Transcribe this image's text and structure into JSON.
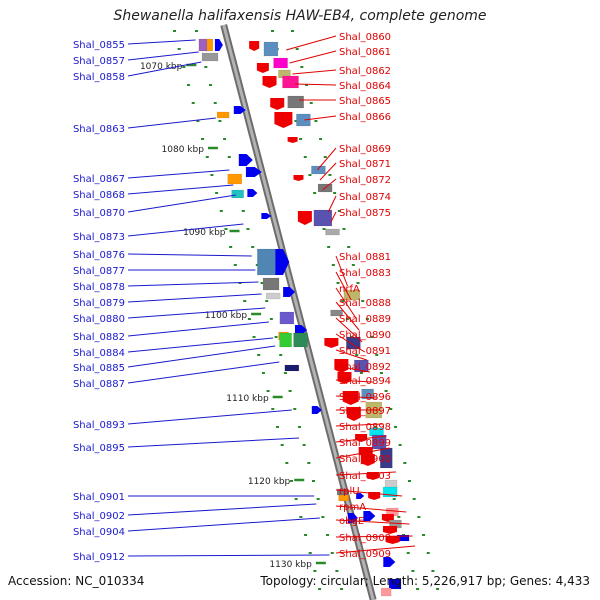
{
  "title": "Shewanella halifaxensis HAW-EB4, complete genome",
  "accession_text": "Accession: NC_010334",
  "summary_text": "Topology: circular; Length: 5,226,917 bp; Genes: 4,433",
  "colors": {
    "left_label": "#1a1acc",
    "right_label": "#e00000",
    "backbone": "#8a8a8a",
    "tick": "#2a8a2a",
    "forward_gene": "#0000ee",
    "reverse_gene": "#ee0000"
  },
  "kbp_ticks": [
    "1070 kbp",
    "1080 kbp",
    "1090 kbp",
    "1100 kbp",
    "1110 kbp",
    "1120 kbp",
    "1130 kbp"
  ],
  "left_labels": [
    "Shal_0855",
    "Shal_0857",
    "Shal_0858",
    "Shal_0863",
    "Shal_0867",
    "Shal_0868",
    "Shal_0870",
    "Shal_0873",
    "Shal_0876",
    "Shal_0877",
    "Shal_0878",
    "Shal_0879",
    "Shal_0880",
    "Shal_0882",
    "Shal_0884",
    "Shal_0885",
    "Shal_0887",
    "Shal_0893",
    "Shal_0895",
    "Shal_0901",
    "Shal_0902",
    "Shal_0904",
    "Shal_0912"
  ],
  "right_labels": [
    "Shal_0860",
    "Shal_0861",
    "Shal_0862",
    "Shal_0864",
    "Shal_0865",
    "Shal_0866",
    "Shal_0869",
    "Shal_0871",
    "Shal_0872",
    "Shal_0874",
    "Shal_0875",
    "Shal_0881",
    "Shal_0883",
    "nrfA",
    "Shal_0888",
    "Shal_0889",
    "Shal_0890",
    "Shal_0891",
    "Shal_0892",
    "Shal_0894",
    "Shal_0896",
    "Shal_0897",
    "Shal_0898",
    "Shal_0899",
    "Shal_0900",
    "Shal_0903",
    "rplU",
    "rpmA",
    "obgE",
    "Shal_0908",
    "Shal_0909"
  ]
}
